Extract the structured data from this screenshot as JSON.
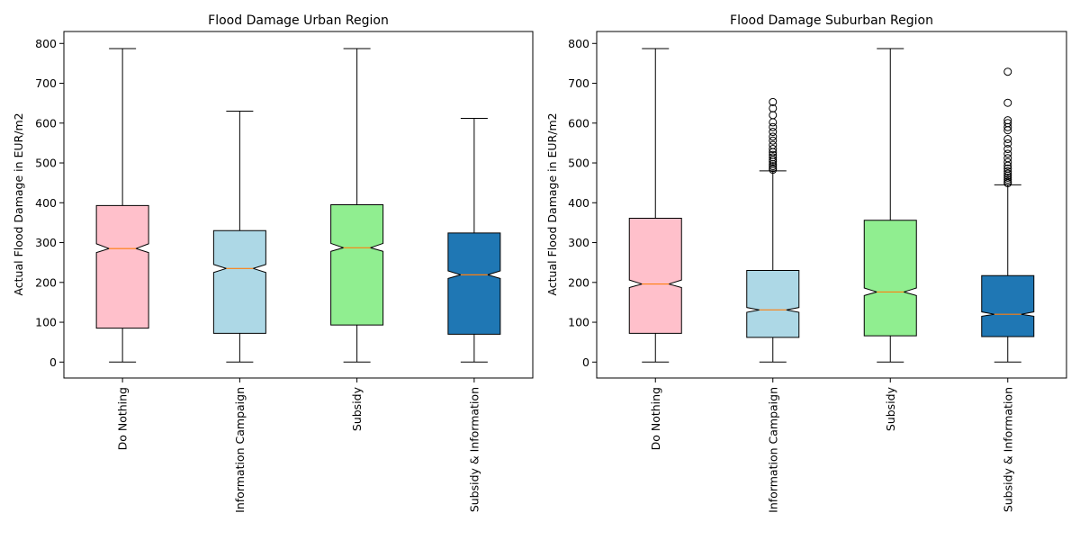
{
  "colors": {
    "do_nothing": "#ffc0cb",
    "information_campaign": "#add8e6",
    "subsidy": "#90ee90",
    "subsidy_and_information": "#1f77b4",
    "median": "#ff7f0e",
    "outline": "#000000"
  },
  "chart_data": [
    {
      "type": "boxplot",
      "notched": true,
      "title": "Flood Damage Urban Region",
      "ylabel": "Actual Flood Damage in EUR/m2",
      "ylim": [
        -40,
        830
      ],
      "yticks": [
        0,
        100,
        200,
        300,
        400,
        500,
        600,
        700,
        800
      ],
      "categories": [
        "Do Nothing",
        "Information Campaign",
        "Subsidy",
        "Subsidy & Information"
      ],
      "boxes": [
        {
          "whisker_low": 0,
          "q1": 85,
          "notch_low": 275,
          "median": 285,
          "notch_high": 297,
          "q3": 393,
          "whisker_high": 787,
          "outliers": []
        },
        {
          "whisker_low": 0,
          "q1": 72,
          "notch_low": 225,
          "median": 235,
          "notch_high": 245,
          "q3": 330,
          "whisker_high": 630,
          "outliers": []
        },
        {
          "whisker_low": 0,
          "q1": 93,
          "notch_low": 278,
          "median": 287,
          "notch_high": 298,
          "q3": 395,
          "whisker_high": 787,
          "outliers": []
        },
        {
          "whisker_low": 0,
          "q1": 70,
          "notch_low": 210,
          "median": 219,
          "notch_high": 229,
          "q3": 324,
          "whisker_high": 612,
          "outliers": []
        }
      ]
    },
    {
      "type": "boxplot",
      "notched": true,
      "title": "Flood Damage Suburban Region",
      "ylabel": "Actual Flood Damage in EUR/m2",
      "ylim": [
        -40,
        830
      ],
      "yticks": [
        0,
        100,
        200,
        300,
        400,
        500,
        600,
        700,
        800
      ],
      "categories": [
        "Do Nothing",
        "Information Campaign",
        "Subsidy",
        "Subsidy & Information"
      ],
      "boxes": [
        {
          "whisker_low": 0,
          "q1": 72,
          "notch_low": 187,
          "median": 196,
          "notch_high": 206,
          "q3": 361,
          "whisker_high": 787,
          "outliers": []
        },
        {
          "whisker_low": 0,
          "q1": 62,
          "notch_low": 125,
          "median": 131,
          "notch_high": 137,
          "q3": 230,
          "whisker_high": 480,
          "outliers": [
            483,
            487,
            492,
            497,
            503,
            508,
            514,
            520,
            527,
            535,
            545,
            556,
            566,
            578,
            590,
            602,
            620,
            637,
            653
          ]
        },
        {
          "whisker_low": 0,
          "q1": 66,
          "notch_low": 167,
          "median": 176,
          "notch_high": 186,
          "q3": 356,
          "whisker_high": 787,
          "outliers": []
        },
        {
          "whisker_low": 0,
          "q1": 64,
          "notch_low": 115,
          "median": 120,
          "notch_high": 126,
          "q3": 217,
          "whisker_high": 445,
          "outliers": [
            449,
            453,
            458,
            463,
            468,
            473,
            479,
            486,
            493,
            502,
            512,
            523,
            535,
            549,
            560,
            582,
            590,
            600,
            607,
            651,
            729
          ]
        }
      ]
    }
  ]
}
